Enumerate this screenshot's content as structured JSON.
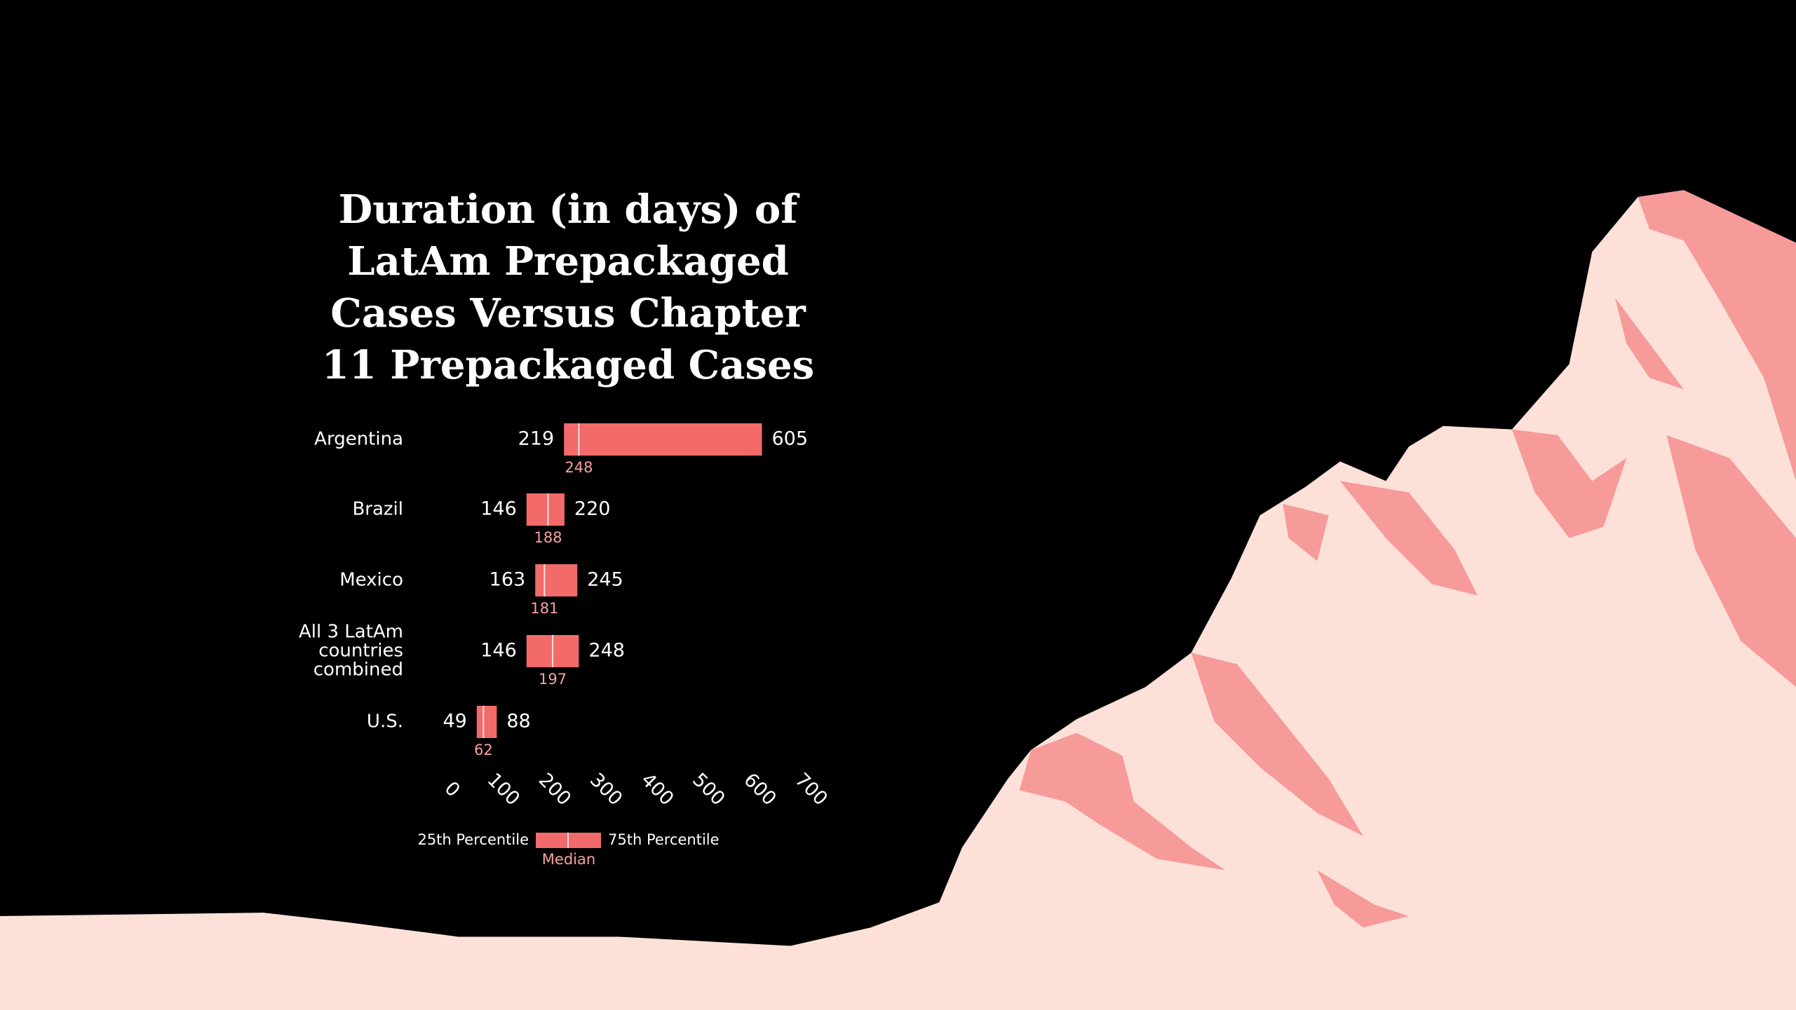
{
  "chart_data": {
    "type": "range",
    "title": "Duration (in days) of LatAm Prepackaged Cases Versus Chapter 11 Prepackaged Cases",
    "categories": [
      "Argentina",
      "Brazil",
      "Mexico",
      "All 3 LatAm countries combined",
      "U.S."
    ],
    "series": [
      {
        "name": "25th Percentile",
        "values": [
          219,
          146,
          163,
          146,
          49
        ]
      },
      {
        "name": "Median",
        "values": [
          248,
          188,
          181,
          197,
          62
        ]
      },
      {
        "name": "75th Percentile",
        "values": [
          605,
          220,
          245,
          248,
          88
        ]
      }
    ],
    "color": "#f26a6a",
    "median_color": "#f8a0a0",
    "xlim": [
      0,
      700
    ],
    "xticks": [
      0,
      100,
      200,
      300,
      400,
      500,
      600,
      700
    ]
  }
}
